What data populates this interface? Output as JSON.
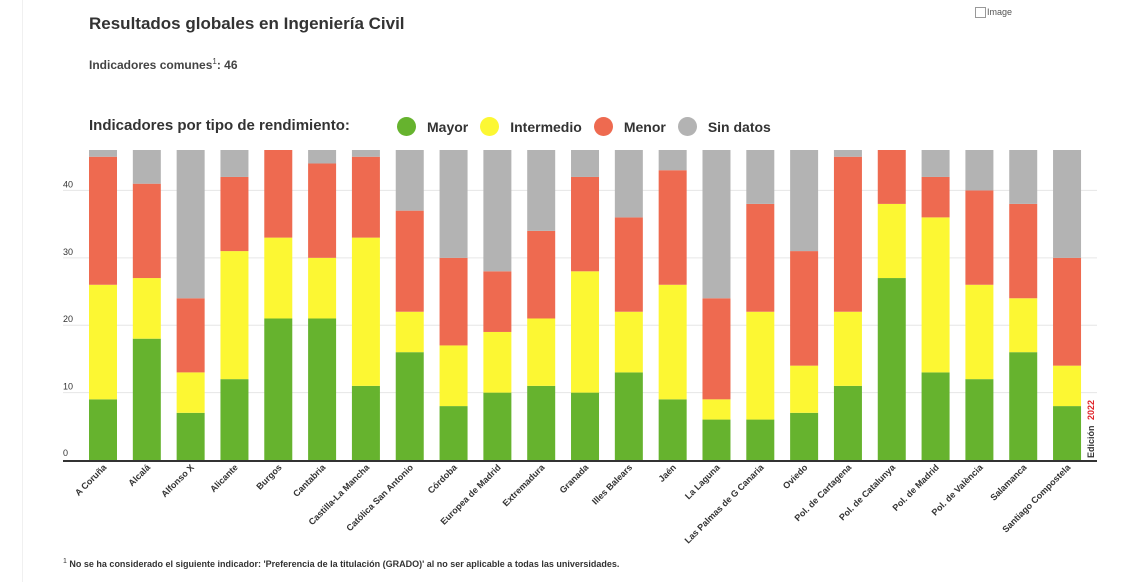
{
  "header": {
    "title": "Resultados globales en Ingeniería Civil",
    "subtitle_prefix": "Indicadores comunes",
    "subtitle_sup": "1",
    "subtitle_value": ": 46",
    "image_alt": "Image"
  },
  "legend": {
    "title": "Indicadores por tipo de rendimiento:",
    "items": [
      {
        "label": "Mayor",
        "color": "#66b32e"
      },
      {
        "label": "Intermedio",
        "color": "#fcf733"
      },
      {
        "label": "Menor",
        "color": "#ee6a50"
      },
      {
        "label": "Sin datos",
        "color": "#b3b3b3"
      }
    ]
  },
  "edition": {
    "prefix": "Edición",
    "year": "2022",
    "year_color": "#e0262b"
  },
  "footnote": {
    "sup": "1",
    "text": "No se ha considerado el siguiente indicador: 'Preferencia de la titulación (GRADO)' al no ser aplicable a todas las universidades."
  },
  "chart_data": {
    "type": "bar",
    "stacked": true,
    "ylim": [
      0,
      46
    ],
    "yticks": [
      0,
      10,
      20,
      30,
      40
    ],
    "grid": true,
    "categories": [
      "A Coruña",
      "Alcalá",
      "Alfonso X",
      "Alicante",
      "Burgos",
      "Cantabria",
      "Castilla-La Mancha",
      "Católica San Antonio",
      "Córdoba",
      "Europea de Madrid",
      "Extremadura",
      "Granada",
      "Illes Balears",
      "Jaén",
      "La Laguna",
      "Las Palmas de G Canaria",
      "Oviedo",
      "Pol. de Cartagena",
      "Pol. de Catalunya",
      "Pol. de Madrid",
      "Pol. de València",
      "Salamanca",
      "Santiago Compostela"
    ],
    "series": [
      {
        "name": "Mayor",
        "color": "#66b32e",
        "values": [
          9,
          18,
          7,
          12,
          21,
          21,
          11,
          16,
          8,
          10,
          11,
          10,
          13,
          9,
          6,
          6,
          7,
          11,
          27,
          13,
          12,
          16,
          8
        ]
      },
      {
        "name": "Intermedio",
        "color": "#fcf733",
        "values": [
          17,
          9,
          6,
          19,
          12,
          9,
          22,
          6,
          9,
          9,
          10,
          18,
          9,
          17,
          3,
          16,
          7,
          11,
          11,
          23,
          14,
          8,
          6
        ]
      },
      {
        "name": "Menor",
        "color": "#ee6a50",
        "values": [
          19,
          14,
          11,
          11,
          13,
          14,
          12,
          15,
          13,
          9,
          13,
          14,
          14,
          17,
          15,
          16,
          17,
          23,
          8,
          6,
          14,
          14,
          16
        ]
      },
      {
        "name": "Sin datos",
        "color": "#b3b3b3",
        "values": [
          1,
          5,
          22,
          4,
          0,
          2,
          1,
          9,
          16,
          18,
          12,
          4,
          10,
          3,
          22,
          8,
          15,
          1,
          0,
          4,
          6,
          8,
          16
        ]
      }
    ]
  }
}
